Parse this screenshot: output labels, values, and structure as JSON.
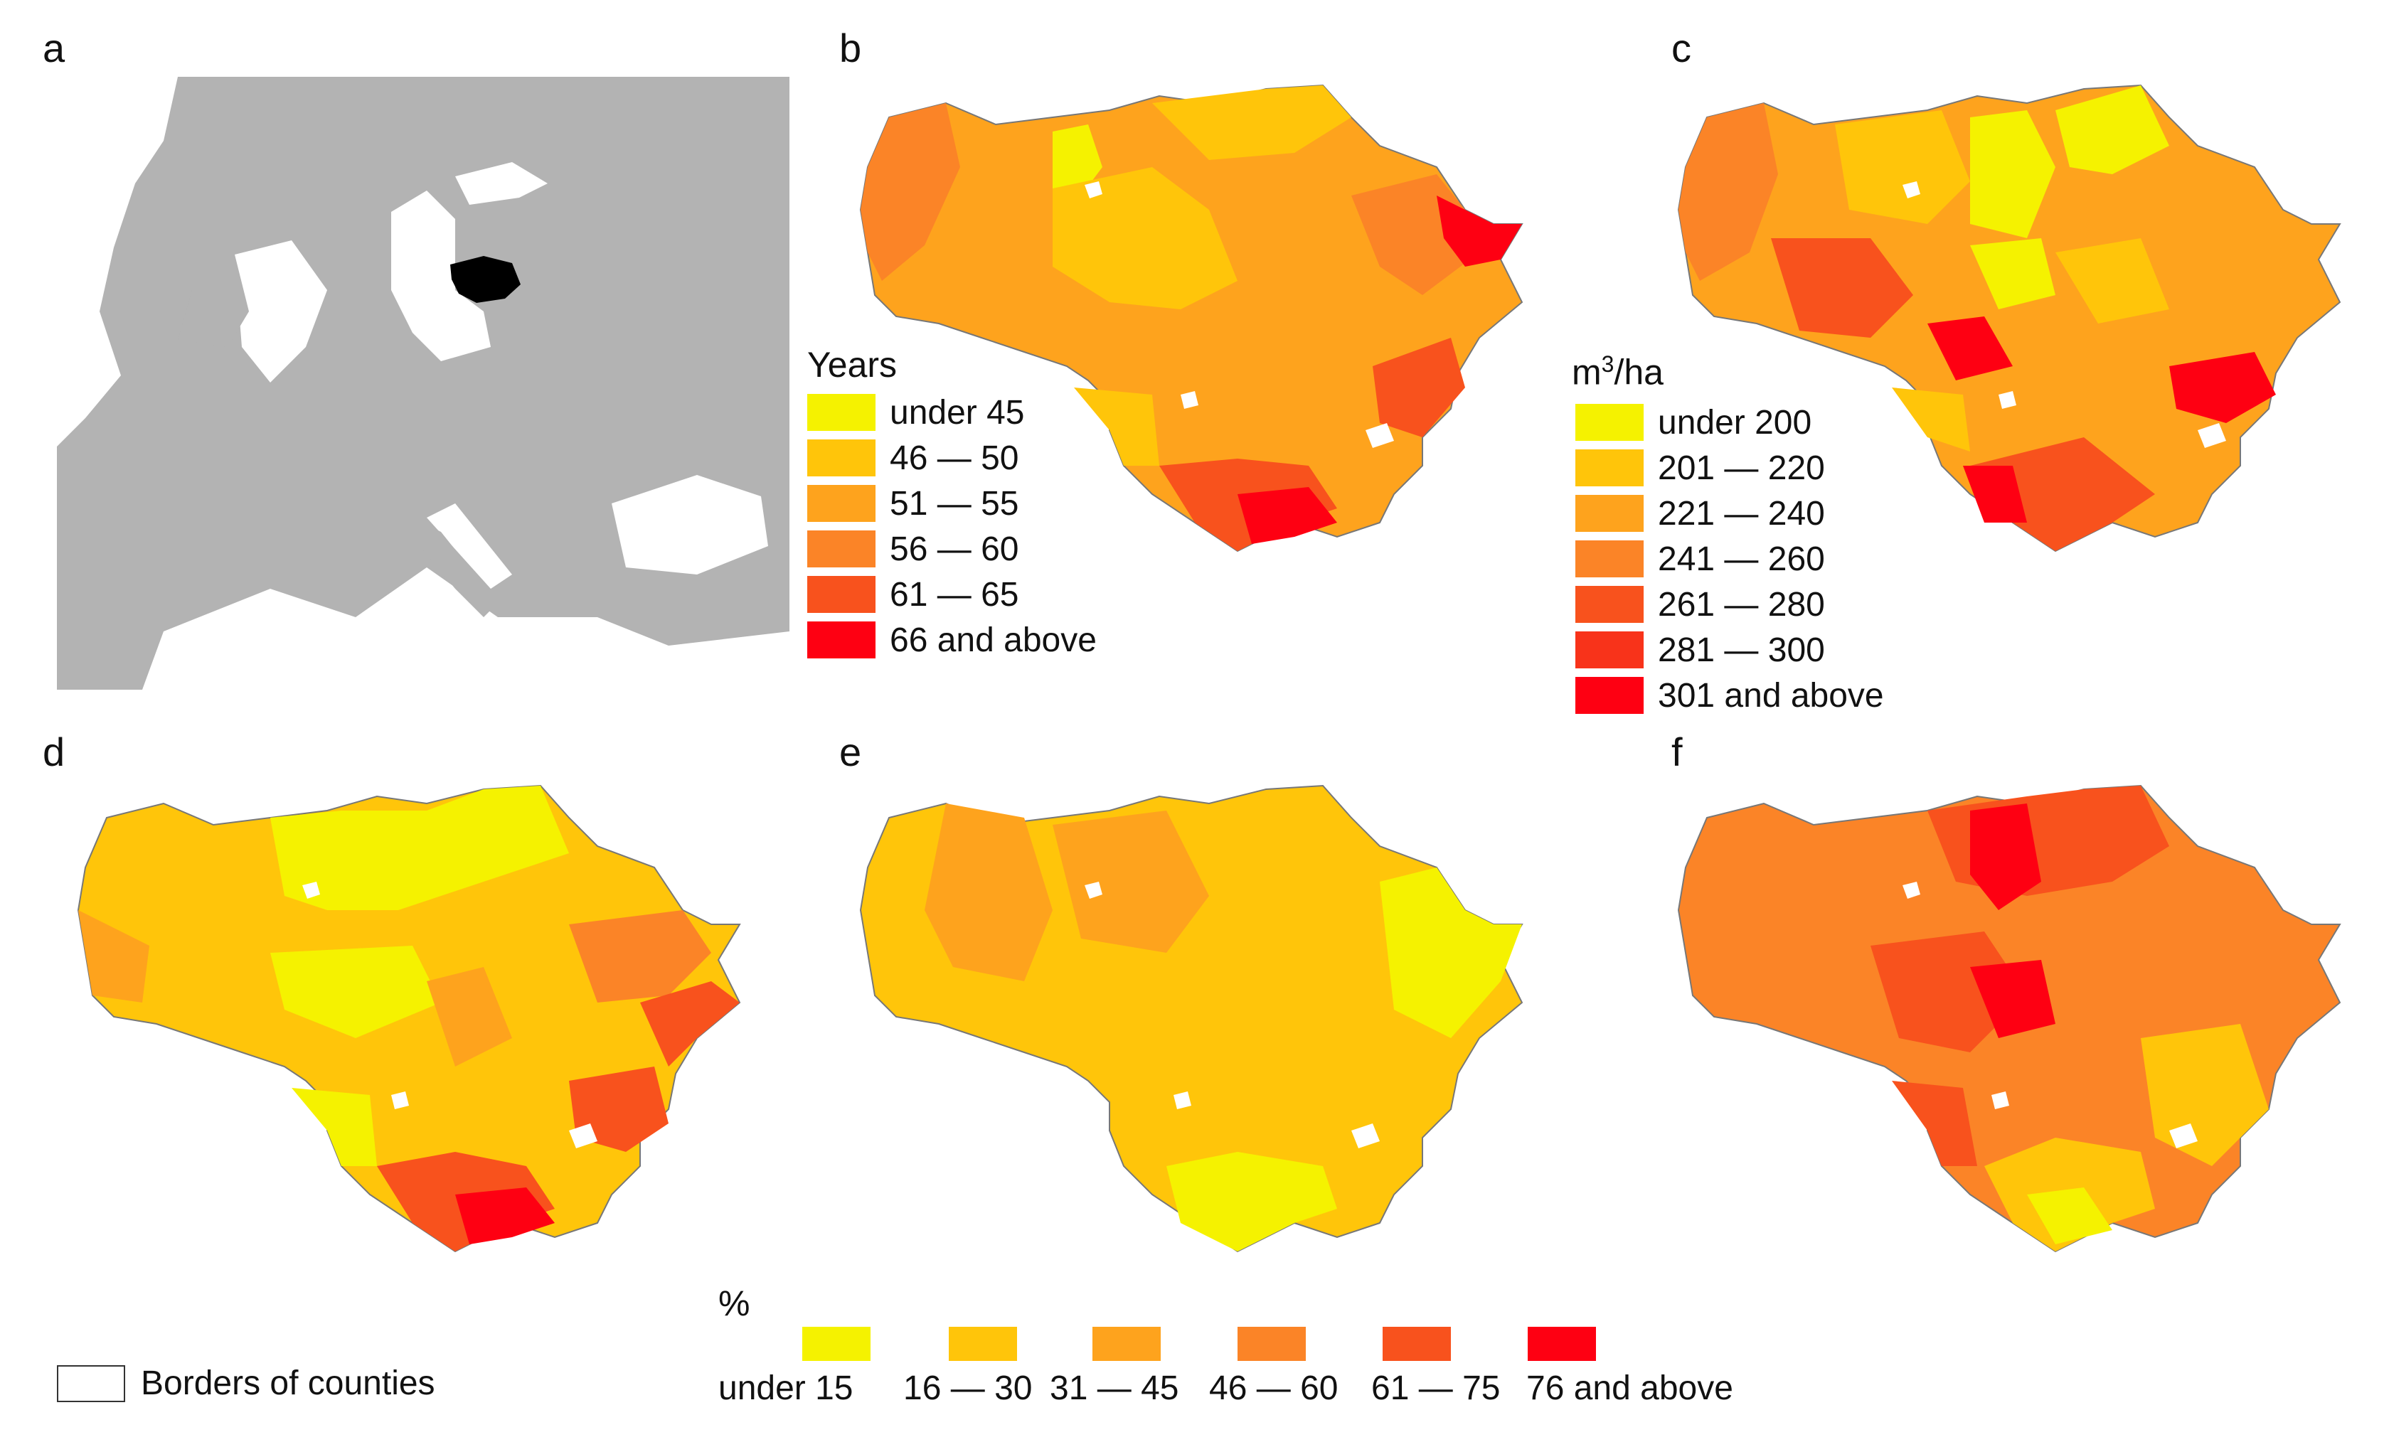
{
  "panels": {
    "a": "a",
    "b": "b",
    "c": "c",
    "d": "d",
    "e": "e",
    "f": "f"
  },
  "colors": {
    "c1": "#f5f200",
    "c2": "#ffc50a",
    "c3": "#fea31d",
    "c4": "#fb8427",
    "c5": "#f8521d",
    "c6": "#fe0012",
    "land": "#b3b3b3",
    "country_highlight": "#000000",
    "border": "#777777"
  },
  "legend_b": {
    "title": "Years",
    "items": [
      "under 45",
      "46 — 50",
      "51 — 55",
      "56 — 60",
      "61 — 65",
      "66 and above"
    ]
  },
  "legend_c": {
    "title_main": "m",
    "title_sup": "3",
    "title_rest": "/ha",
    "items": [
      "under 200",
      "201 — 220",
      "221 — 240",
      "241 — 260",
      "261 — 280",
      "281 — 300",
      "301 and above"
    ]
  },
  "legend_pct": {
    "title": "%",
    "items": [
      "under 15",
      "16 — 30",
      "31 — 45",
      "46 — 60",
      "61 — 75",
      "76 and above"
    ]
  },
  "borders_key": {
    "label": "Borders of counties"
  }
}
